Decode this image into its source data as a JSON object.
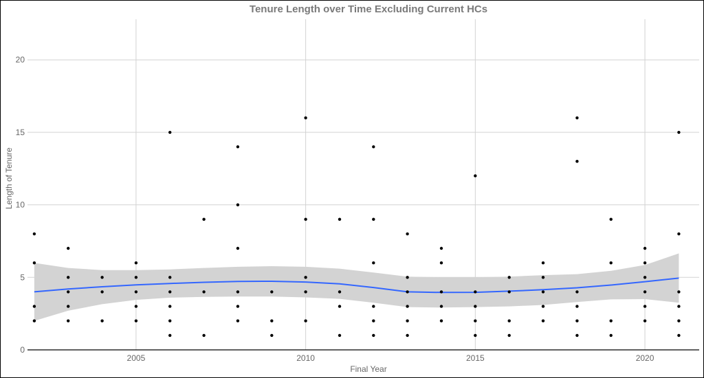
{
  "chart_data": {
    "type": "scatter",
    "title": "Tenure Length over Time Excluding Current HCs",
    "xlabel": "Final Year",
    "ylabel": "Length of Tenure",
    "xlim": [
      2001.8,
      2021.6
    ],
    "ylim": [
      0,
      22.8
    ],
    "x_ticks": [
      2005,
      2010,
      2015,
      2020
    ],
    "y_ticks": [
      0,
      5,
      10,
      15,
      20
    ],
    "grid": true,
    "colors": {
      "points": "#000000",
      "smooth": "#3366ff",
      "ribbon": "#d3d3d3",
      "grid": "#d2d2d2"
    },
    "points": [
      {
        "x": 2002,
        "y": 2
      },
      {
        "x": 2002,
        "y": 3
      },
      {
        "x": 2002,
        "y": 6
      },
      {
        "x": 2002,
        "y": 8
      },
      {
        "x": 2003,
        "y": 2
      },
      {
        "x": 2003,
        "y": 3
      },
      {
        "x": 2003,
        "y": 4
      },
      {
        "x": 2003,
        "y": 5
      },
      {
        "x": 2003,
        "y": 7
      },
      {
        "x": 2004,
        "y": 2
      },
      {
        "x": 2004,
        "y": 4
      },
      {
        "x": 2004,
        "y": 5
      },
      {
        "x": 2005,
        "y": 2
      },
      {
        "x": 2005,
        "y": 3
      },
      {
        "x": 2005,
        "y": 4
      },
      {
        "x": 2005,
        "y": 5
      },
      {
        "x": 2005,
        "y": 6
      },
      {
        "x": 2006,
        "y": 1
      },
      {
        "x": 2006,
        "y": 2
      },
      {
        "x": 2006,
        "y": 3
      },
      {
        "x": 2006,
        "y": 4
      },
      {
        "x": 2006,
        "y": 5
      },
      {
        "x": 2006,
        "y": 15
      },
      {
        "x": 2007,
        "y": 1
      },
      {
        "x": 2007,
        "y": 4
      },
      {
        "x": 2007,
        "y": 9
      },
      {
        "x": 2008,
        "y": 2
      },
      {
        "x": 2008,
        "y": 3
      },
      {
        "x": 2008,
        "y": 4
      },
      {
        "x": 2008,
        "y": 7
      },
      {
        "x": 2008,
        "y": 10
      },
      {
        "x": 2008,
        "y": 14
      },
      {
        "x": 2009,
        "y": 1
      },
      {
        "x": 2009,
        "y": 2
      },
      {
        "x": 2009,
        "y": 4
      },
      {
        "x": 2010,
        "y": 2
      },
      {
        "x": 2010,
        "y": 4
      },
      {
        "x": 2010,
        "y": 5
      },
      {
        "x": 2010,
        "y": 9
      },
      {
        "x": 2010,
        "y": 16
      },
      {
        "x": 2011,
        "y": 1
      },
      {
        "x": 2011,
        "y": 3
      },
      {
        "x": 2011,
        "y": 4
      },
      {
        "x": 2011,
        "y": 9
      },
      {
        "x": 2012,
        "y": 1
      },
      {
        "x": 2012,
        "y": 2
      },
      {
        "x": 2012,
        "y": 3
      },
      {
        "x": 2012,
        "y": 6
      },
      {
        "x": 2012,
        "y": 9
      },
      {
        "x": 2012,
        "y": 14
      },
      {
        "x": 2013,
        "y": 1
      },
      {
        "x": 2013,
        "y": 2
      },
      {
        "x": 2013,
        "y": 3
      },
      {
        "x": 2013,
        "y": 4
      },
      {
        "x": 2013,
        "y": 5
      },
      {
        "x": 2013,
        "y": 8
      },
      {
        "x": 2014,
        "y": 2
      },
      {
        "x": 2014,
        "y": 3
      },
      {
        "x": 2014,
        "y": 4
      },
      {
        "x": 2014,
        "y": 6
      },
      {
        "x": 2014,
        "y": 7
      },
      {
        "x": 2015,
        "y": 1
      },
      {
        "x": 2015,
        "y": 2
      },
      {
        "x": 2015,
        "y": 3
      },
      {
        "x": 2015,
        "y": 4
      },
      {
        "x": 2015,
        "y": 12
      },
      {
        "x": 2016,
        "y": 1
      },
      {
        "x": 2016,
        "y": 2
      },
      {
        "x": 2016,
        "y": 4
      },
      {
        "x": 2016,
        "y": 5
      },
      {
        "x": 2017,
        "y": 2
      },
      {
        "x": 2017,
        "y": 3
      },
      {
        "x": 2017,
        "y": 4
      },
      {
        "x": 2017,
        "y": 5
      },
      {
        "x": 2017,
        "y": 6
      },
      {
        "x": 2018,
        "y": 1
      },
      {
        "x": 2018,
        "y": 2
      },
      {
        "x": 2018,
        "y": 3
      },
      {
        "x": 2018,
        "y": 4
      },
      {
        "x": 2018,
        "y": 13
      },
      {
        "x": 2018,
        "y": 16
      },
      {
        "x": 2019,
        "y": 1
      },
      {
        "x": 2019,
        "y": 2
      },
      {
        "x": 2019,
        "y": 6
      },
      {
        "x": 2019,
        "y": 9
      },
      {
        "x": 2020,
        "y": 2
      },
      {
        "x": 2020,
        "y": 3
      },
      {
        "x": 2020,
        "y": 4
      },
      {
        "x": 2020,
        "y": 5
      },
      {
        "x": 2020,
        "y": 6
      },
      {
        "x": 2020,
        "y": 7
      },
      {
        "x": 2021,
        "y": 1
      },
      {
        "x": 2021,
        "y": 2
      },
      {
        "x": 2021,
        "y": 3
      },
      {
        "x": 2021,
        "y": 4
      },
      {
        "x": 2021,
        "y": 8
      },
      {
        "x": 2021,
        "y": 15
      }
    ],
    "smooth": {
      "x": [
        2002,
        2003,
        2004,
        2005,
        2006,
        2007,
        2008,
        2009,
        2010,
        2011,
        2012,
        2013,
        2014,
        2015,
        2016,
        2017,
        2018,
        2019,
        2020,
        2021
      ],
      "y": [
        4.0,
        4.2,
        4.35,
        4.48,
        4.58,
        4.66,
        4.72,
        4.73,
        4.68,
        4.55,
        4.3,
        4.0,
        3.96,
        3.97,
        4.05,
        4.15,
        4.28,
        4.47,
        4.7,
        4.95
      ],
      "lower": [
        2.0,
        2.7,
        3.15,
        3.45,
        3.6,
        3.65,
        3.68,
        3.68,
        3.62,
        3.52,
        3.25,
        2.95,
        2.92,
        2.95,
        3.0,
        3.1,
        3.3,
        3.48,
        3.5,
        3.25
      ],
      "upper": [
        6.0,
        5.65,
        5.5,
        5.5,
        5.55,
        5.65,
        5.73,
        5.77,
        5.73,
        5.6,
        5.33,
        5.05,
        5.0,
        5.0,
        5.05,
        5.15,
        5.22,
        5.45,
        5.85,
        6.65
      ]
    }
  }
}
